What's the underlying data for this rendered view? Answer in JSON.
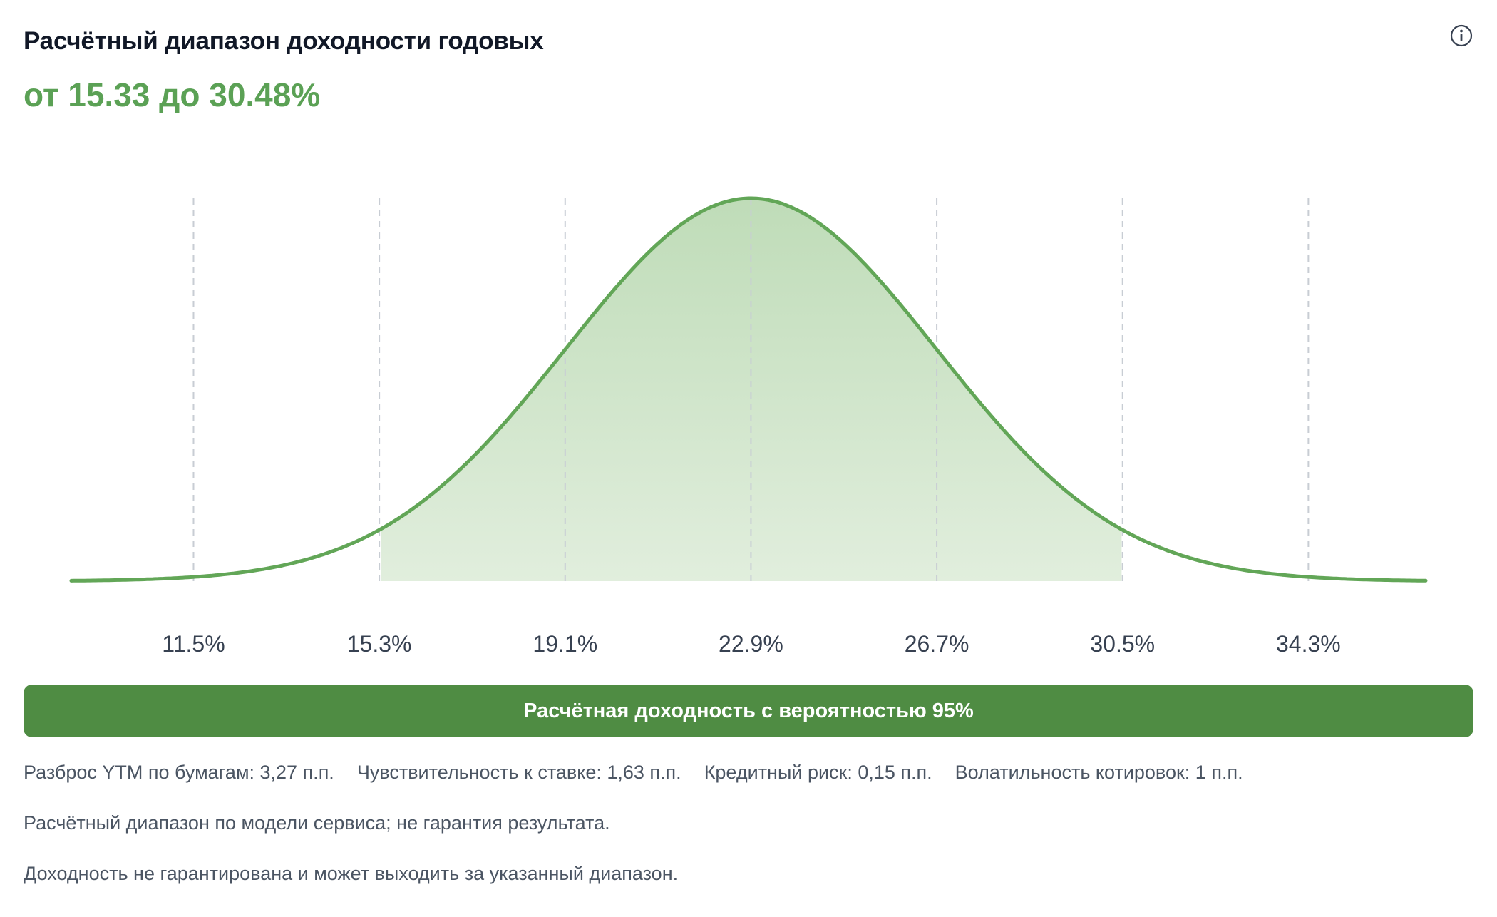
{
  "header": {
    "title": "Расчётный диапазон доходности годовых",
    "range_text": "от 15.33 до 30.48%"
  },
  "icons": {
    "info": "info-icon"
  },
  "colors": {
    "accent": "#5ba155",
    "curve": "#62a657",
    "fill": "#c3e0bd",
    "band": "#4f8c43",
    "grid": "#c8cdd4",
    "text_muted": "#4b5563",
    "title": "#111827"
  },
  "chart_data": {
    "type": "area",
    "distribution": "normal",
    "mean": 22.9,
    "std": 3.79,
    "x_range": [
      9.0,
      36.7
    ],
    "shaded_range": [
      15.33,
      30.48
    ],
    "x_ticks": [
      11.5,
      15.3,
      19.1,
      22.9,
      26.7,
      30.5,
      34.3
    ],
    "x_tick_labels": [
      "11.5%",
      "15.3%",
      "19.1%",
      "22.9%",
      "26.7%",
      "30.5%",
      "34.3%"
    ],
    "grid": "vertical dashed",
    "title": "Расчётный диапазон доходности годовых",
    "xlabel": "",
    "ylabel": ""
  },
  "band_label": "Расчётная доходность с вероятностью 95%",
  "metrics": [
    "Разброс YTM по бумагам: 3,27 п.п.",
    "Чувствительность к ставке: 1,63 п.п.",
    "Кредитный риск: 0,15 п.п.",
    "Волатильность котировок: 1 п.п."
  ],
  "notes": [
    "Расчётный диапазон по модели сервиса; не гарантия результата.",
    "Доходность не гарантирована и может выходить за указанный диапазон."
  ]
}
